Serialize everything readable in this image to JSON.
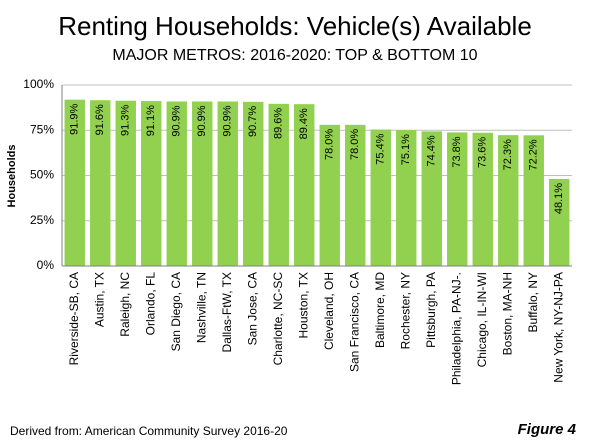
{
  "chart_data": {
    "type": "bar",
    "title": "Renting Households: Vehicle(s) Available",
    "subtitle": "MAJOR METROS: 2016-2020: TOP & BOTTOM 10",
    "y_label": "Households",
    "source": "Derived from: American Community Survey 2016-20",
    "figure_label": "Figure 4",
    "categories": [
      "Riverside-SB, CA",
      "Austin, TX",
      "Raleigh, NC",
      "Orlando, FL",
      "San Diego, CA",
      "Nashville, TN",
      "Dallas-FtW, TX",
      "San Jose, CA",
      "Charlotte, NC-SC",
      "Houston, TX",
      "Cleveland, OH",
      "San Francisco, CA",
      "Baltimore, MD",
      "Rochester, NY",
      "Pittsburgh, PA",
      "Philadelphia, PA-NJ-.",
      "Chicago, IL-IN-WI",
      "Boston, MA-NH",
      "Buffalo, NY",
      "New York, NY-NJ-PA"
    ],
    "values": [
      91.9,
      91.6,
      91.3,
      91.1,
      90.9,
      90.9,
      90.9,
      90.7,
      89.6,
      89.4,
      78.0,
      78.0,
      75.4,
      75.1,
      74.4,
      73.8,
      73.6,
      72.3,
      72.2,
      48.1
    ],
    "value_labels": [
      "91.9%",
      "91.6%",
      "91.3%",
      "91.1%",
      "90.9%",
      "90.9%",
      "90.9%",
      "90.7%",
      "89.6%",
      "89.4%",
      "78.0%",
      "78.0%",
      "75.4%",
      "75.1%",
      "74.4%",
      "73.8%",
      "73.6%",
      "72.3%",
      "72.2%",
      "48.1%"
    ],
    "color": "#92d050",
    "ylim": [
      0,
      100
    ],
    "yticks": [
      {
        "value": 0,
        "label": "0%"
      },
      {
        "value": 25,
        "label": "25%"
      },
      {
        "value": 50,
        "label": "50%"
      },
      {
        "value": 75,
        "label": "75%"
      },
      {
        "value": 100,
        "label": "100%"
      }
    ],
    "grid": true
  }
}
